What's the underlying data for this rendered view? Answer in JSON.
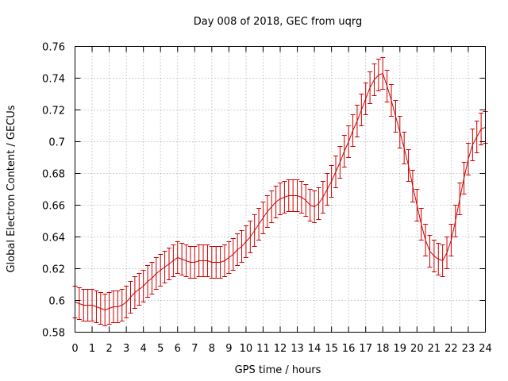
{
  "colors": {
    "series": "#cc0000",
    "grid": "#a0a0a0",
    "axis": "#000000",
    "background": "#ffffff"
  },
  "chart_data": {
    "type": "line",
    "title": "Day 008 of 2018, GEC from uqrg",
    "xlabel": "GPS time / hours",
    "ylabel": "Global Electron Content / GECUs",
    "xlim": [
      0,
      24
    ],
    "ylim": [
      0.58,
      0.76
    ],
    "grid": true,
    "legend": "none",
    "x_ticks": [
      "0",
      "1",
      "2",
      "3",
      "4",
      "5",
      "6",
      "7",
      "8",
      "9",
      "10",
      "11",
      "12",
      "13",
      "14",
      "15",
      "16",
      "17",
      "18",
      "19",
      "20",
      "21",
      "22",
      "23",
      "24"
    ],
    "y_ticks": [
      "0.58",
      "0.6",
      "0.62",
      "0.64",
      "0.66",
      "0.68",
      "0.7",
      "0.72",
      "0.74",
      "0.76"
    ],
    "series": [
      {
        "error_bar": 0.01,
        "points": [
          [
            0,
            0.599
          ],
          [
            0.25,
            0.598
          ],
          [
            0.5,
            0.597
          ],
          [
            0.75,
            0.597
          ],
          [
            1,
            0.597
          ],
          [
            1.25,
            0.596
          ],
          [
            1.5,
            0.595
          ],
          [
            1.75,
            0.594
          ],
          [
            2,
            0.595
          ],
          [
            2.25,
            0.596
          ],
          [
            2.5,
            0.596
          ],
          [
            2.75,
            0.597
          ],
          [
            3,
            0.599
          ],
          [
            3.25,
            0.602
          ],
          [
            3.5,
            0.605
          ],
          [
            3.75,
            0.607
          ],
          [
            4,
            0.609
          ],
          [
            4.25,
            0.612
          ],
          [
            4.5,
            0.614
          ],
          [
            4.75,
            0.617
          ],
          [
            5,
            0.619
          ],
          [
            5.25,
            0.621
          ],
          [
            5.5,
            0.623
          ],
          [
            5.75,
            0.625
          ],
          [
            6,
            0.627
          ],
          [
            6.25,
            0.626
          ],
          [
            6.5,
            0.625
          ],
          [
            6.75,
            0.624
          ],
          [
            7,
            0.624
          ],
          [
            7.25,
            0.625
          ],
          [
            7.5,
            0.625
          ],
          [
            7.75,
            0.625
          ],
          [
            8,
            0.624
          ],
          [
            8.25,
            0.624
          ],
          [
            8.5,
            0.624
          ],
          [
            8.75,
            0.625
          ],
          [
            9,
            0.627
          ],
          [
            9.25,
            0.629
          ],
          [
            9.5,
            0.632
          ],
          [
            9.75,
            0.634
          ],
          [
            10,
            0.637
          ],
          [
            10.25,
            0.64
          ],
          [
            10.5,
            0.644
          ],
          [
            10.75,
            0.648
          ],
          [
            11,
            0.652
          ],
          [
            11.25,
            0.656
          ],
          [
            11.5,
            0.659
          ],
          [
            11.75,
            0.662
          ],
          [
            12,
            0.664
          ],
          [
            12.25,
            0.665
          ],
          [
            12.5,
            0.666
          ],
          [
            12.75,
            0.666
          ],
          [
            13,
            0.666
          ],
          [
            13.25,
            0.665
          ],
          [
            13.5,
            0.663
          ],
          [
            13.75,
            0.66
          ],
          [
            14,
            0.659
          ],
          [
            14.25,
            0.661
          ],
          [
            14.5,
            0.665
          ],
          [
            14.75,
            0.67
          ],
          [
            15,
            0.675
          ],
          [
            15.25,
            0.681
          ],
          [
            15.5,
            0.687
          ],
          [
            15.75,
            0.694
          ],
          [
            16,
            0.7
          ],
          [
            16.25,
            0.707
          ],
          [
            16.5,
            0.713
          ],
          [
            16.75,
            0.72
          ],
          [
            17,
            0.727
          ],
          [
            17.25,
            0.734
          ],
          [
            17.5,
            0.739
          ],
          [
            17.75,
            0.742
          ],
          [
            18,
            0.743
          ],
          [
            18.25,
            0.735
          ],
          [
            18.5,
            0.726
          ],
          [
            18.75,
            0.716
          ],
          [
            19,
            0.706
          ],
          [
            19.25,
            0.696
          ],
          [
            19.5,
            0.685
          ],
          [
            19.75,
            0.672
          ],
          [
            20,
            0.66
          ],
          [
            20.25,
            0.648
          ],
          [
            20.5,
            0.638
          ],
          [
            20.75,
            0.631
          ],
          [
            21,
            0.628
          ],
          [
            21.25,
            0.626
          ],
          [
            21.5,
            0.625
          ],
          [
            21.75,
            0.63
          ],
          [
            22,
            0.638
          ],
          [
            22.25,
            0.65
          ],
          [
            22.5,
            0.664
          ],
          [
            22.75,
            0.677
          ],
          [
            23,
            0.689
          ],
          [
            23.25,
            0.698
          ],
          [
            23.5,
            0.703
          ],
          [
            23.75,
            0.708
          ],
          [
            24,
            0.709
          ]
        ]
      }
    ]
  }
}
